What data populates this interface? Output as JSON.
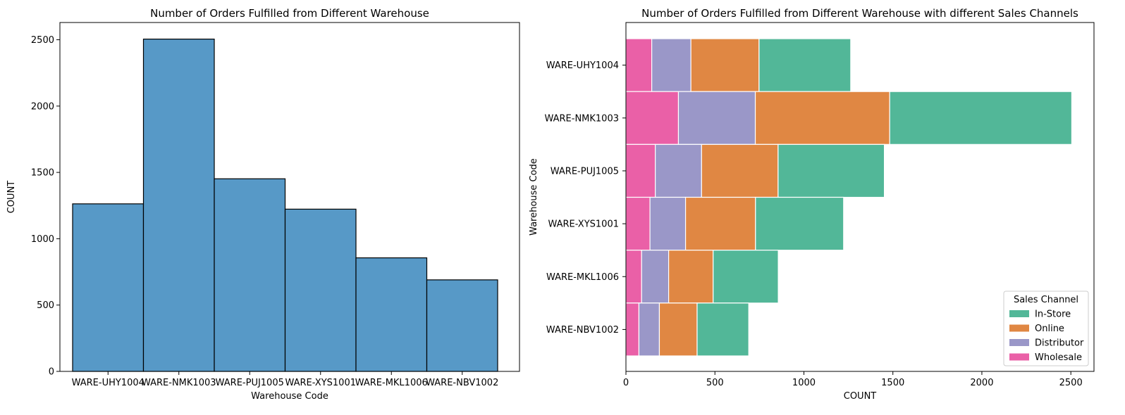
{
  "colors": {
    "bar_fill": "#5799c7",
    "bar_edge": "#000000",
    "in_store": "#52b798",
    "online": "#e08743",
    "distributor": "#9a97c8",
    "wholesale": "#ea60a7"
  },
  "chart_data": [
    {
      "type": "bar",
      "title": "Number of Orders Fulfilled from Different Warehouse",
      "xlabel": "Warehouse Code",
      "ylabel": "COUNT",
      "categories": [
        "WARE-UHY1004",
        "WARE-NMK1003",
        "WARE-PUJ1005",
        "WARE-XYS1001",
        "WARE-MKL1006",
        "WARE-NBV1002"
      ],
      "values": [
        1263,
        2505,
        1452,
        1223,
        856,
        690
      ],
      "ylim": [
        0,
        2630
      ],
      "yticks": [
        0,
        500,
        1000,
        1500,
        2000,
        2500
      ],
      "grid": false
    },
    {
      "type": "bar",
      "orientation": "horizontal",
      "stacked": true,
      "title": "Number of Orders Fulfilled from Different Warehouse with different Sales Channels",
      "xlabel": "COUNT",
      "ylabel": "Warehouse Code",
      "categories": [
        "WARE-UHY1004",
        "WARE-NMK1003",
        "WARE-PUJ1005",
        "WARE-XYS1001",
        "WARE-MKL1006",
        "WARE-NBV1002"
      ],
      "series": [
        {
          "name": "Wholesale",
          "values": [
            145,
            295,
            165,
            135,
            88,
            73
          ]
        },
        {
          "name": "Distributor",
          "values": [
            220,
            432,
            260,
            200,
            152,
            115
          ]
        },
        {
          "name": "Online",
          "values": [
            383,
            755,
            430,
            393,
            250,
            212
          ]
        },
        {
          "name": "In-Store",
          "values": [
            515,
            1023,
            597,
            495,
            366,
            290
          ]
        }
      ],
      "xlim": [
        0,
        2630
      ],
      "xticks": [
        0,
        500,
        1000,
        1500,
        2000,
        2500
      ],
      "legend_title": "Sales Channel",
      "legend_order": [
        "In-Store",
        "Online",
        "Distributor",
        "Wholesale"
      ],
      "legend_position": "lower-right",
      "grid": false
    }
  ]
}
